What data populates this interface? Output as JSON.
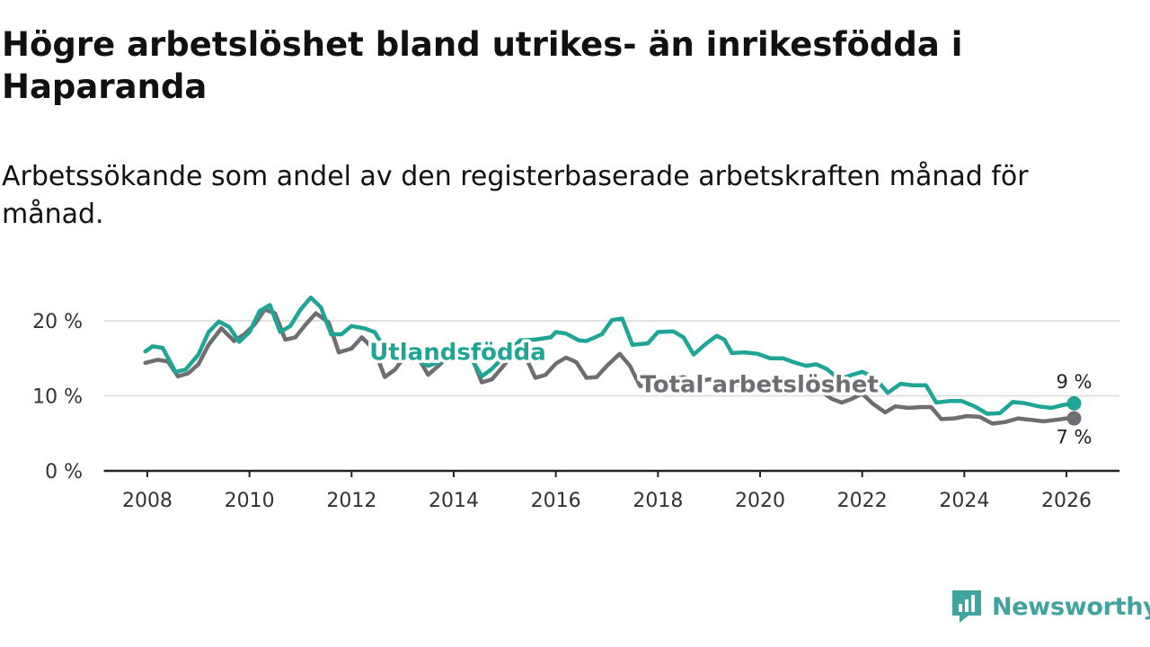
{
  "title": "Högre arbetslöshet bland utrikes- än inrikesfödda i Haparanda",
  "subtitle": "Arbetssökande som andel av den registerbaserade arbetskraften månad för månad.",
  "brand": {
    "name": "Newsworthy",
    "color": "#3fa39e"
  },
  "chart_data": {
    "type": "line",
    "ylim": [
      0,
      25
    ],
    "xlim": [
      2007.5,
      2026.9
    ],
    "y_ticks": [
      {
        "value": 0,
        "label": "0 %"
      },
      {
        "value": 10,
        "label": "10 %"
      },
      {
        "value": 20,
        "label": "20 %"
      }
    ],
    "x_ticks": [
      {
        "value": 2008,
        "label": "2008"
      },
      {
        "value": 2010,
        "label": "2010"
      },
      {
        "value": 2012,
        "label": "2012"
      },
      {
        "value": 2014,
        "label": "2014"
      },
      {
        "value": 2016,
        "label": "2016"
      },
      {
        "value": 2018,
        "label": "2018"
      },
      {
        "value": 2020,
        "label": "2020"
      },
      {
        "value": 2022,
        "label": "2022"
      },
      {
        "value": 2024,
        "label": "2024"
      },
      {
        "value": 2026,
        "label": "2026"
      }
    ],
    "grid": true,
    "series": [
      {
        "name": "Total arbetslöshet",
        "color": "#6e6e72",
        "end_label": "7 %",
        "points": [
          [
            2007.96,
            14.4
          ],
          [
            2008.2,
            14.8
          ],
          [
            2008.4,
            14.6
          ],
          [
            2008.6,
            12.6
          ],
          [
            2008.8,
            13.0
          ],
          [
            2009.0,
            14.2
          ],
          [
            2009.2,
            16.8
          ],
          [
            2009.45,
            19.0
          ],
          [
            2009.7,
            17.3
          ],
          [
            2009.9,
            18.2
          ],
          [
            2010.1,
            19.5
          ],
          [
            2010.3,
            21.5
          ],
          [
            2010.5,
            21.0
          ],
          [
            2010.7,
            17.5
          ],
          [
            2010.9,
            17.8
          ],
          [
            2011.1,
            19.5
          ],
          [
            2011.3,
            21.0
          ],
          [
            2011.55,
            19.8
          ],
          [
            2011.75,
            15.8
          ],
          [
            2012.0,
            16.3
          ],
          [
            2012.2,
            17.8
          ],
          [
            2012.45,
            16.1
          ],
          [
            2012.65,
            12.5
          ],
          [
            2012.85,
            13.5
          ],
          [
            2013.05,
            15.3
          ],
          [
            2013.3,
            15.1
          ],
          [
            2013.5,
            12.8
          ],
          [
            2013.7,
            14.0
          ],
          [
            2013.9,
            15.3
          ],
          [
            2014.1,
            15.8
          ],
          [
            2014.35,
            15.2
          ],
          [
            2014.55,
            11.8
          ],
          [
            2014.75,
            12.2
          ],
          [
            2014.95,
            13.8
          ],
          [
            2015.15,
            15.5
          ],
          [
            2015.4,
            15.3
          ],
          [
            2015.6,
            12.4
          ],
          [
            2015.8,
            12.8
          ],
          [
            2016.0,
            14.3
          ],
          [
            2016.2,
            15.1
          ],
          [
            2016.4,
            14.5
          ],
          [
            2016.6,
            12.4
          ],
          [
            2016.8,
            12.5
          ],
          [
            2017.0,
            14.0
          ],
          [
            2017.25,
            15.6
          ],
          [
            2017.45,
            14.0
          ],
          [
            2017.65,
            11.3
          ],
          [
            2017.85,
            11.4
          ],
          [
            2018.05,
            12.0
          ],
          [
            2018.3,
            12.2
          ],
          [
            2018.5,
            12.5
          ],
          [
            2018.75,
            11.8
          ],
          [
            2019.0,
            12.2
          ],
          [
            2019.25,
            12.0
          ],
          [
            2019.5,
            11.5
          ],
          [
            2019.75,
            11.6
          ],
          [
            2020.0,
            11.8
          ],
          [
            2020.25,
            11.3
          ],
          [
            2020.5,
            11.1
          ],
          [
            2020.75,
            11.2
          ],
          [
            2021.0,
            10.8
          ],
          [
            2021.2,
            10.6
          ],
          [
            2021.4,
            9.6
          ],
          [
            2021.6,
            9.1
          ],
          [
            2021.8,
            9.6
          ],
          [
            2022.0,
            10.3
          ],
          [
            2022.2,
            9.0
          ],
          [
            2022.45,
            7.8
          ],
          [
            2022.65,
            8.6
          ],
          [
            2022.9,
            8.4
          ],
          [
            2023.15,
            8.5
          ],
          [
            2023.35,
            8.5
          ],
          [
            2023.55,
            6.9
          ],
          [
            2023.8,
            7.0
          ],
          [
            2024.05,
            7.3
          ],
          [
            2024.3,
            7.2
          ],
          [
            2024.55,
            6.3
          ],
          [
            2024.8,
            6.5
          ],
          [
            2025.05,
            7.0
          ],
          [
            2025.3,
            6.8
          ],
          [
            2025.55,
            6.6
          ],
          [
            2025.8,
            6.8
          ],
          [
            2026.0,
            7.0
          ],
          [
            2026.15,
            7.0
          ]
        ]
      },
      {
        "name": "Utlandsfödda",
        "color": "#1ea596",
        "end_label": "9 %",
        "points": [
          [
            2007.96,
            15.9
          ],
          [
            2008.1,
            16.6
          ],
          [
            2008.3,
            16.4
          ],
          [
            2008.55,
            13.2
          ],
          [
            2008.75,
            13.5
          ],
          [
            2009.0,
            15.5
          ],
          [
            2009.2,
            18.5
          ],
          [
            2009.4,
            19.9
          ],
          [
            2009.6,
            19.2
          ],
          [
            2009.8,
            17.2
          ],
          [
            2010.0,
            18.5
          ],
          [
            2010.2,
            21.3
          ],
          [
            2010.4,
            22.1
          ],
          [
            2010.6,
            18.5
          ],
          [
            2010.8,
            19.3
          ],
          [
            2011.0,
            21.5
          ],
          [
            2011.2,
            23.1
          ],
          [
            2011.4,
            21.8
          ],
          [
            2011.6,
            18.2
          ],
          [
            2011.8,
            18.2
          ],
          [
            2012.0,
            19.3
          ],
          [
            2012.25,
            19.0
          ],
          [
            2012.45,
            18.5
          ],
          [
            2012.7,
            15.8
          ],
          [
            2013.0,
            16.6
          ],
          [
            2013.3,
            14.8
          ],
          [
            2013.5,
            14.0
          ],
          [
            2013.75,
            14.6
          ],
          [
            2014.0,
            15.3
          ],
          [
            2014.3,
            15.5
          ],
          [
            2014.55,
            12.6
          ],
          [
            2014.75,
            13.6
          ],
          [
            2015.0,
            15.3
          ],
          [
            2015.3,
            17.4
          ],
          [
            2015.6,
            17.5
          ],
          [
            2015.9,
            17.8
          ],
          [
            2016.0,
            18.5
          ],
          [
            2016.2,
            18.3
          ],
          [
            2016.45,
            17.4
          ],
          [
            2016.6,
            17.3
          ],
          [
            2016.9,
            18.2
          ],
          [
            2017.1,
            20.1
          ],
          [
            2017.3,
            20.3
          ],
          [
            2017.5,
            16.8
          ],
          [
            2017.8,
            17.0
          ],
          [
            2018.0,
            18.5
          ],
          [
            2018.3,
            18.6
          ],
          [
            2018.5,
            17.8
          ],
          [
            2018.7,
            15.5
          ],
          [
            2018.95,
            17.0
          ],
          [
            2019.15,
            18.0
          ],
          [
            2019.3,
            17.5
          ],
          [
            2019.45,
            15.7
          ],
          [
            2019.7,
            15.8
          ],
          [
            2019.95,
            15.6
          ],
          [
            2020.2,
            15.0
          ],
          [
            2020.45,
            15.0
          ],
          [
            2020.65,
            14.5
          ],
          [
            2020.9,
            14.0
          ],
          [
            2021.1,
            14.2
          ],
          [
            2021.3,
            13.6
          ],
          [
            2021.55,
            12.2
          ],
          [
            2021.8,
            12.8
          ],
          [
            2022.0,
            13.2
          ],
          [
            2022.25,
            12.4
          ],
          [
            2022.5,
            10.4
          ],
          [
            2022.75,
            11.6
          ],
          [
            2023.0,
            11.4
          ],
          [
            2023.25,
            11.4
          ],
          [
            2023.45,
            9.1
          ],
          [
            2023.7,
            9.3
          ],
          [
            2023.95,
            9.3
          ],
          [
            2024.2,
            8.6
          ],
          [
            2024.45,
            7.6
          ],
          [
            2024.7,
            7.7
          ],
          [
            2024.95,
            9.2
          ],
          [
            2025.2,
            9.0
          ],
          [
            2025.45,
            8.6
          ],
          [
            2025.7,
            8.4
          ],
          [
            2025.95,
            8.8
          ],
          [
            2026.15,
            9.0
          ]
        ]
      }
    ]
  }
}
